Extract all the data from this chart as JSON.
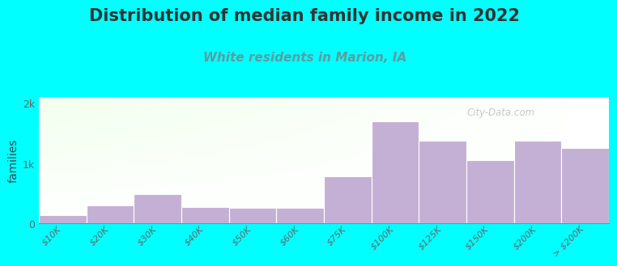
{
  "title": "Distribution of median family income in 2022",
  "subtitle": "White residents in Marion, IA",
  "ylabel": "families",
  "categories": [
    "$10K",
    "$20K",
    "$30K",
    "$40K",
    "$50K",
    "$60K",
    "$75K",
    "$100K",
    "$125K",
    "$150K",
    "$200K",
    "> $200K"
  ],
  "values": [
    130,
    300,
    490,
    270,
    255,
    255,
    780,
    1700,
    1380,
    1050,
    1380,
    1250
  ],
  "bar_color": "#c5b0d5",
  "bar_edge_color": "#ffffff",
  "background_color": "#00ffff",
  "title_color": "#333333",
  "subtitle_color": "#5a9ea0",
  "ylabel_color": "#444444",
  "tick_color": "#666666",
  "yticks": [
    0,
    1000,
    2000
  ],
  "ytick_labels": [
    "0",
    "1k",
    "2k"
  ],
  "ylim": [
    0,
    2100
  ],
  "watermark": "City-Data.com",
  "title_fontsize": 15,
  "subtitle_fontsize": 11,
  "ylabel_fontsize": 10,
  "tick_fontsize": 8
}
